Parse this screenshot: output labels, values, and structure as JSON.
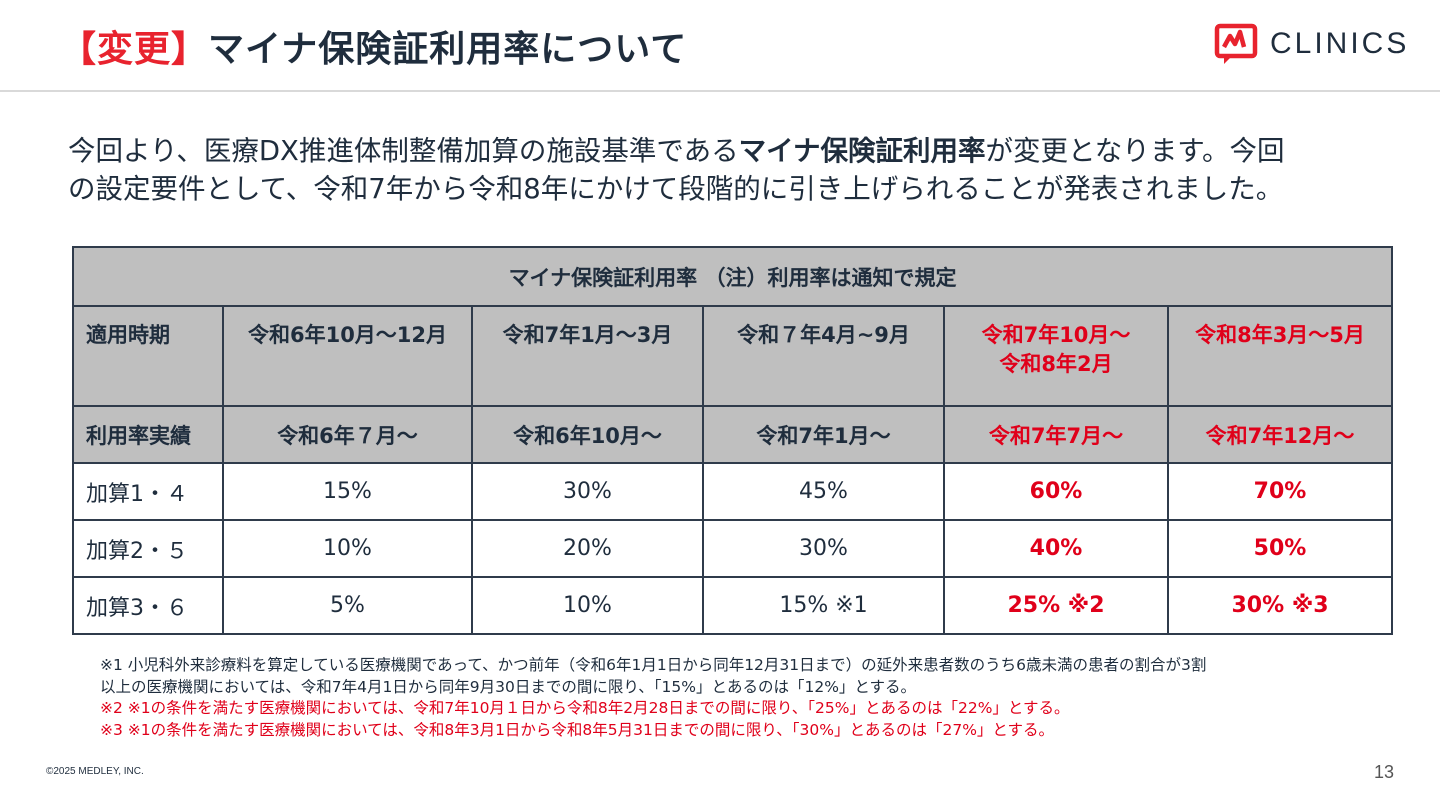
{
  "header": {
    "title_tag": "【変更】",
    "title_text": "マイナ保険証利用率について",
    "logo_text": "CLINICS",
    "logo_icon": "clinics-logo-icon",
    "accent_color": "#e8232e"
  },
  "intro": {
    "part1": "今回より、医療DX推進体制整備加算の施設基準である",
    "bold": "マイナ保険証利用率",
    "part2": "が変更となります。今回",
    "line2": "の設定要件として、令和7年から令和8年にかけて段階的に引き上げられることが発表されました。"
  },
  "table": {
    "caption": "マイナ保険証利用率 （注）利用率は通知で規定",
    "period_label": "適用時期",
    "periods": [
      "令和6年10月〜12月",
      "令和7年1月〜3月",
      "令和７年4月~9月",
      "令和7年10月〜",
      "令和8年3月〜5月"
    ],
    "period_4_line2": "令和8年2月",
    "results_label": "利用率実績",
    "results": [
      "令和6年７月〜",
      "令和6年10月〜",
      "令和7年1月〜",
      "令和7年7月〜",
      "令和7年12月〜"
    ],
    "rows": [
      {
        "label": "加算1・４",
        "values": [
          "15%",
          "30%",
          "45%",
          "60%",
          "70%"
        ]
      },
      {
        "label": "加算2・５",
        "values": [
          "10%",
          "20%",
          "30%",
          "40%",
          "50%"
        ]
      },
      {
        "label": "加算3・６",
        "values": [
          "5%",
          "10%",
          "15% ※1",
          "25% ※2",
          "30% ※3"
        ]
      }
    ],
    "highlight_color": "#e0001a"
  },
  "notes": {
    "note1_line1": "※1 小児科外来診療料を算定している医療機関であって、かつ前年（令和6年1月1日から同年12月31日まで）の延外来患者数のうち6歳未満の患者の割合が3割",
    "note1_line2": "以上の医療機関においては、令和7年4月1日から同年9月30日までの間に限り、「15%」とあるのは「12%」とする。",
    "note2": "※2 ※1の条件を満たす医療機関においては、令和7年10月１日から令和8年2月28日までの間に限り、「25%」とあるのは「22%」とする。",
    "note3": "※3 ※1の条件を満たす医療機関においては、令和8年3月1日から令和8年5月31日までの間に限り、「30%」とあるのは「27%」とする。"
  },
  "footer": {
    "copyright": "©2025 MEDLEY, INC.",
    "page_number": "13"
  }
}
